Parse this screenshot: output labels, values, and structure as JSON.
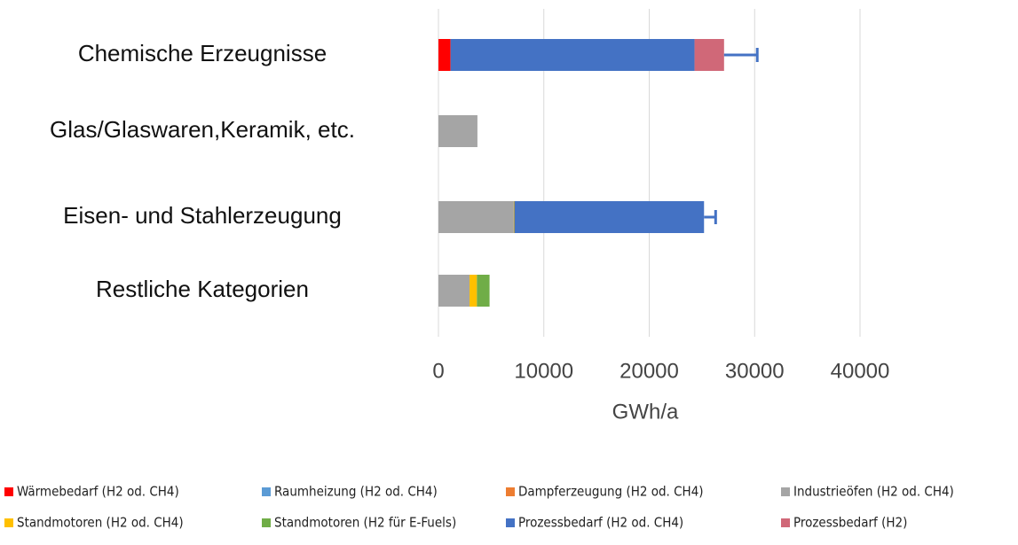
{
  "chart_data": {
    "type": "stacked_barh",
    "x_label": "GWh/a",
    "categories": [
      "Chemische Erzeugnisse",
      "Glas/Glaswaren,Keramik, etc.",
      "Eisen- und Stahlerzeugung",
      "Restliche Kategorien"
    ],
    "series": [
      {
        "name": "Wärmebedarf (H2 od. CH4)",
        "color": "#ff0000",
        "values": [
          1150,
          0,
          0,
          0
        ]
      },
      {
        "name": "Raumheizung (H2 od. CH4)",
        "color": "#5b9bd5",
        "values": [
          0,
          0,
          0,
          0
        ]
      },
      {
        "name": "Dampferzeugung (H2 od. CH4)",
        "color": "#ed7d31",
        "values": [
          0,
          0,
          0,
          0
        ]
      },
      {
        "name": "Industrieöfen (H2 od. CH4)",
        "color": "#a5a5a5",
        "values": [
          0,
          3700,
          7150,
          2950
        ]
      },
      {
        "name": "Standmotoren (H2 od. CH4)",
        "color": "#ffc000",
        "values": [
          0,
          0,
          50,
          700
        ]
      },
      {
        "name": "Standmotoren (H2 für E-Fuels)",
        "color": "#70ad47",
        "values": [
          0,
          0,
          0,
          1200
        ]
      },
      {
        "name": "Prozessbedarf (H2 od. CH4)",
        "color": "#4472c4",
        "values": [
          23150,
          0,
          18000,
          0
        ]
      },
      {
        "name": "Prozessbedarf (H2)",
        "color": "#d06878",
        "values": [
          2800,
          0,
          0,
          0
        ]
      }
    ],
    "errors": [
      3150,
      null,
      1100,
      null
    ],
    "xlim": [
      0,
      40000
    ],
    "xticks": [
      0,
      10000,
      20000,
      30000,
      40000
    ],
    "grid": true,
    "legend": "bottom"
  }
}
